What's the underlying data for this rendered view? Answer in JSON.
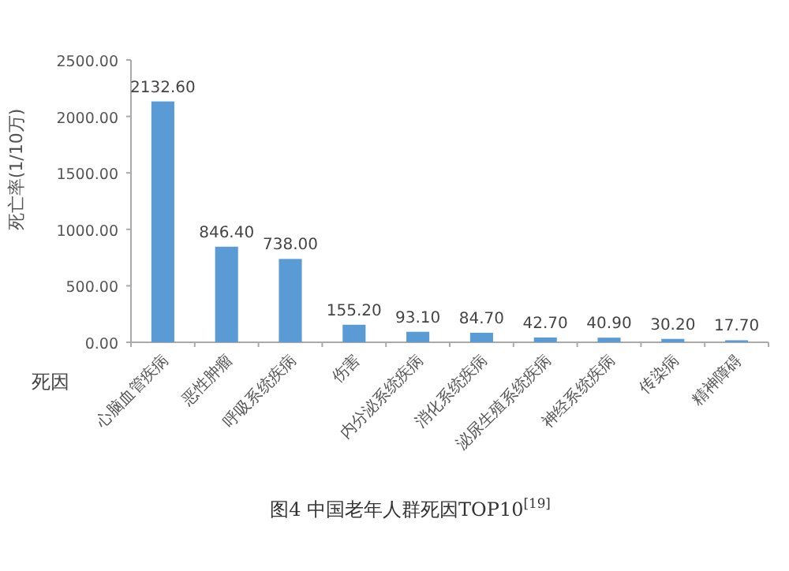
{
  "chart_data": {
    "type": "bar",
    "title": "图4 中国老年人群死因TOP10$^{[19]}$",
    "xlabel": "死因",
    "ylabel": "死亡率(1/10万)",
    "categories": [
      "心脑血管疾病",
      "恶性肿瘤",
      "呼吸系统疾病",
      "伤害",
      "内分泌系统疾病",
      "消化系统疾病",
      "泌尿生殖系统疾病",
      "神经系统疾病",
      "传染病",
      "精神障碍"
    ],
    "values": [
      2132.6,
      846.4,
      738.0,
      155.2,
      93.1,
      84.7,
      42.7,
      40.9,
      30.2,
      17.7
    ],
    "value_labels": [
      "2132.60",
      "846.40",
      "738.00",
      "155.20",
      "93.10",
      "84.70",
      "42.70",
      "40.90",
      "30.20",
      "17.70"
    ],
    "color": "#5b9bd5",
    "ylim": [
      0,
      2500
    ],
    "yticks": [
      {
        "value": 0,
        "label": "0.00"
      },
      {
        "value": 500,
        "label": "500.00"
      },
      {
        "value": 1000,
        "label": "1000.00"
      },
      {
        "value": 1500,
        "label": "1500.00"
      },
      {
        "value": 2000,
        "label": "2000.00"
      },
      {
        "value": 2500,
        "label": "2500.00"
      }
    ],
    "grid": false
  }
}
